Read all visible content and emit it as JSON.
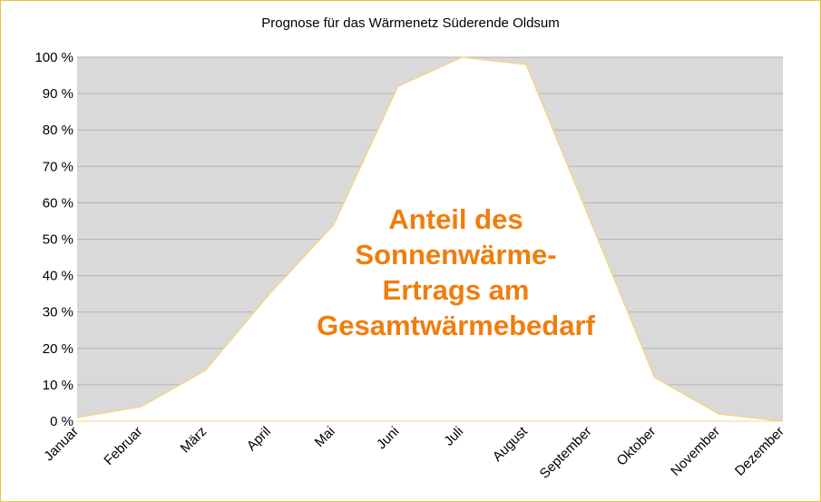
{
  "chart_data": {
    "type": "area",
    "title": "Prognose für das Wärmenetz Süderende Oldsum",
    "annotation": [
      "Anteil des",
      "Sonnenwärme-",
      "Ertrags am",
      "Gesamtwärmebedarf"
    ],
    "categories": [
      "Januar",
      "Februar",
      "März",
      "April",
      "Mai",
      "Juni",
      "Juli",
      "August",
      "September",
      "Oktober",
      "November",
      "Dezember"
    ],
    "series": [
      {
        "values": [
          1,
          4,
          14,
          35,
          54,
          92,
          100,
          98,
          55,
          12,
          2,
          0
        ]
      }
    ],
    "y_ticks": [
      "0 %",
      "10 %",
      "20 %",
      "30 %",
      "40 %",
      "50 %",
      "60 %",
      "70 %",
      "80 %",
      "90 %",
      "100 %"
    ],
    "ylim": [
      0,
      100
    ],
    "grid": true,
    "colors": {
      "plot_background": "#d9d9d9",
      "area_fill": "#ffffff",
      "area_line": "#f5d58a",
      "gridline": "#b3b3b3",
      "annotation": "#f07d0c",
      "frame": "#e8c53a"
    }
  }
}
